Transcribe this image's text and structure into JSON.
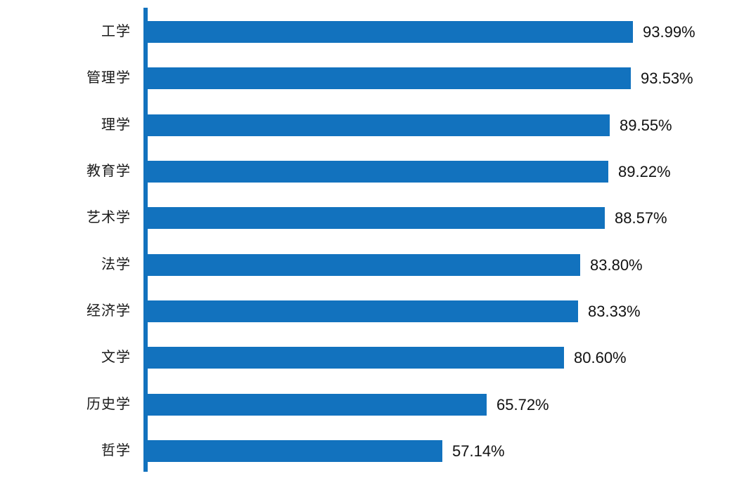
{
  "chart_data": {
    "type": "bar",
    "orientation": "horizontal",
    "title": "",
    "xlabel": "",
    "ylabel": "",
    "categories": [
      "工学",
      "管理学",
      "理学",
      "教育学",
      "艺术学",
      "法学",
      "经济学",
      "文学",
      "历史学",
      "哲学"
    ],
    "values": [
      93.99,
      93.53,
      89.55,
      89.22,
      88.57,
      83.8,
      83.33,
      80.6,
      65.72,
      57.14
    ],
    "value_labels": [
      "93.99%",
      "93.53%",
      "89.55%",
      "89.22%",
      "88.57%",
      "83.80%",
      "83.33%",
      "80.60%",
      "65.72%",
      "57.14%"
    ],
    "xlim": [
      0,
      100
    ],
    "grid": false,
    "legend": null,
    "bar_color": "#1272BE",
    "axis_color": "#1272BE",
    "category_label_color": "#1A1A1A",
    "value_label_color": "#111111"
  }
}
